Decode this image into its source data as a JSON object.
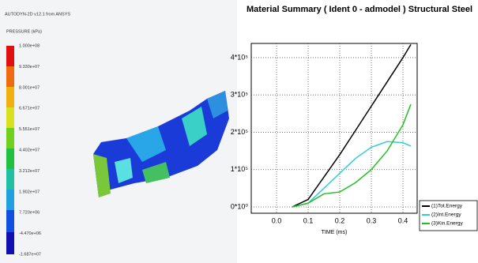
{
  "contour_panel": {
    "title": "AUTODYN-2D v12.1 from ANSYS",
    "quantity": "PRESSURE (kPa)",
    "levels": [
      "1.000e+08",
      "9.330e+07",
      "8.001e+07",
      "6.671e+07",
      "5.551e+07",
      "4.402e+07",
      "3.212e+07",
      "1.902e+07",
      "7.720e+06",
      "-4.470e+06",
      "-1.687e+07"
    ]
  },
  "chart_data": {
    "type": "line",
    "title": "Material Summary ( Ident 0 - admodel ) Structural Steel",
    "x_label": "TIME (ms)",
    "x": [
      0.05,
      0.1,
      0.15,
      0.2,
      0.25,
      0.3,
      0.35,
      0.4,
      0.425
    ],
    "series": [
      {
        "name": "(1)Tot.Energy",
        "color": "#000000",
        "values": [
          0,
          20000,
          80000,
          140000,
          205000,
          270000,
          335000,
          400000,
          435000
        ]
      },
      {
        "name": "(2)Int.Energy",
        "color": "#2ecfd8",
        "values": [
          0,
          10000,
          50000,
          90000,
          130000,
          160000,
          175000,
          172000,
          163000
        ]
      },
      {
        "name": "(3)Kin.Energy",
        "color": "#22c022",
        "values": [
          0,
          10000,
          35000,
          40000,
          65000,
          100000,
          150000,
          220000,
          275000
        ]
      }
    ],
    "xlim": [
      -0.08,
      0.445
    ],
    "xticks": [
      {
        "value": 0,
        "label": "0.0"
      },
      0.1,
      0.2,
      0.3,
      0.4
    ],
    "ylim": [
      -17000,
      438000
    ],
    "yticks": [
      {
        "value": 0,
        "label": "0*10⁰"
      },
      {
        "value": 100000,
        "label": "1*10⁵"
      },
      {
        "value": 200000,
        "label": "2*10⁵"
      },
      {
        "value": 300000,
        "label": "3*10⁵"
      },
      {
        "value": 400000,
        "label": "4*10⁵"
      }
    ],
    "grid": true,
    "legend": "bottom-right"
  }
}
